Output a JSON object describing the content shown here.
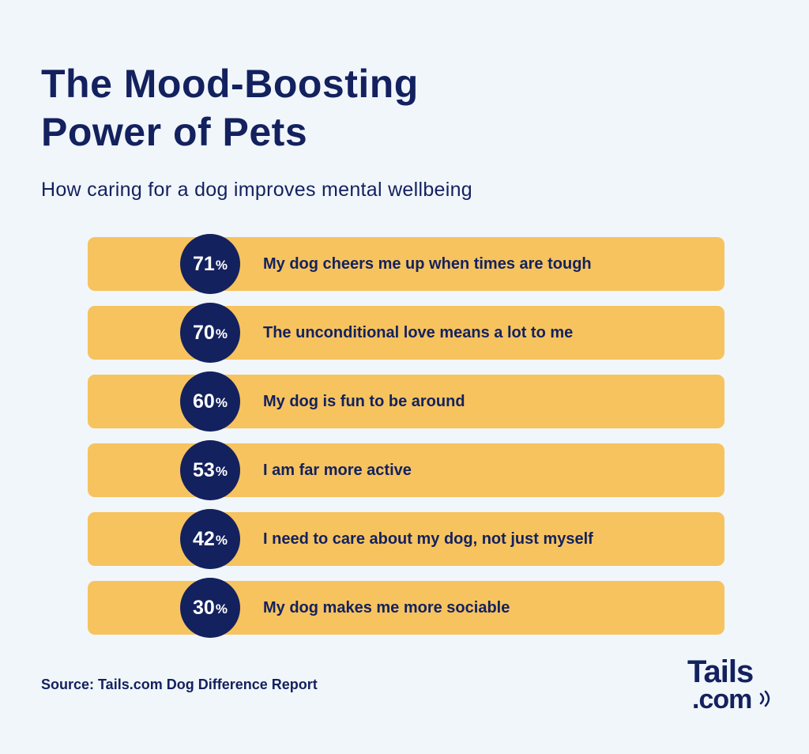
{
  "title_lines": [
    "The Mood-Boosting",
    "Power of Pets"
  ],
  "subtitle": "How caring for a dog improves mental wellbeing",
  "colors": {
    "background": "#f1f6fb",
    "bar": "#f6c35e",
    "circle": "#13215e",
    "text": "#13215e"
  },
  "chart_data": {
    "type": "bar",
    "categories": [
      "My dog cheers me up when times are tough",
      "The unconditional love means a lot to me",
      "My dog is fun to be around",
      "I am far more active",
      "I need to care about my dog, not just myself",
      "My dog makes me more sociable"
    ],
    "values": [
      71,
      70,
      60,
      53,
      42,
      30
    ],
    "value_labels": [
      "71",
      "70",
      "60",
      "53",
      "42",
      "30"
    ],
    "unit": "%"
  },
  "source": "Source: Tails.com Dog Difference Report",
  "logo": {
    "line1": "Tails",
    "line2": ".com",
    "icon": "sound-waves-icon"
  }
}
